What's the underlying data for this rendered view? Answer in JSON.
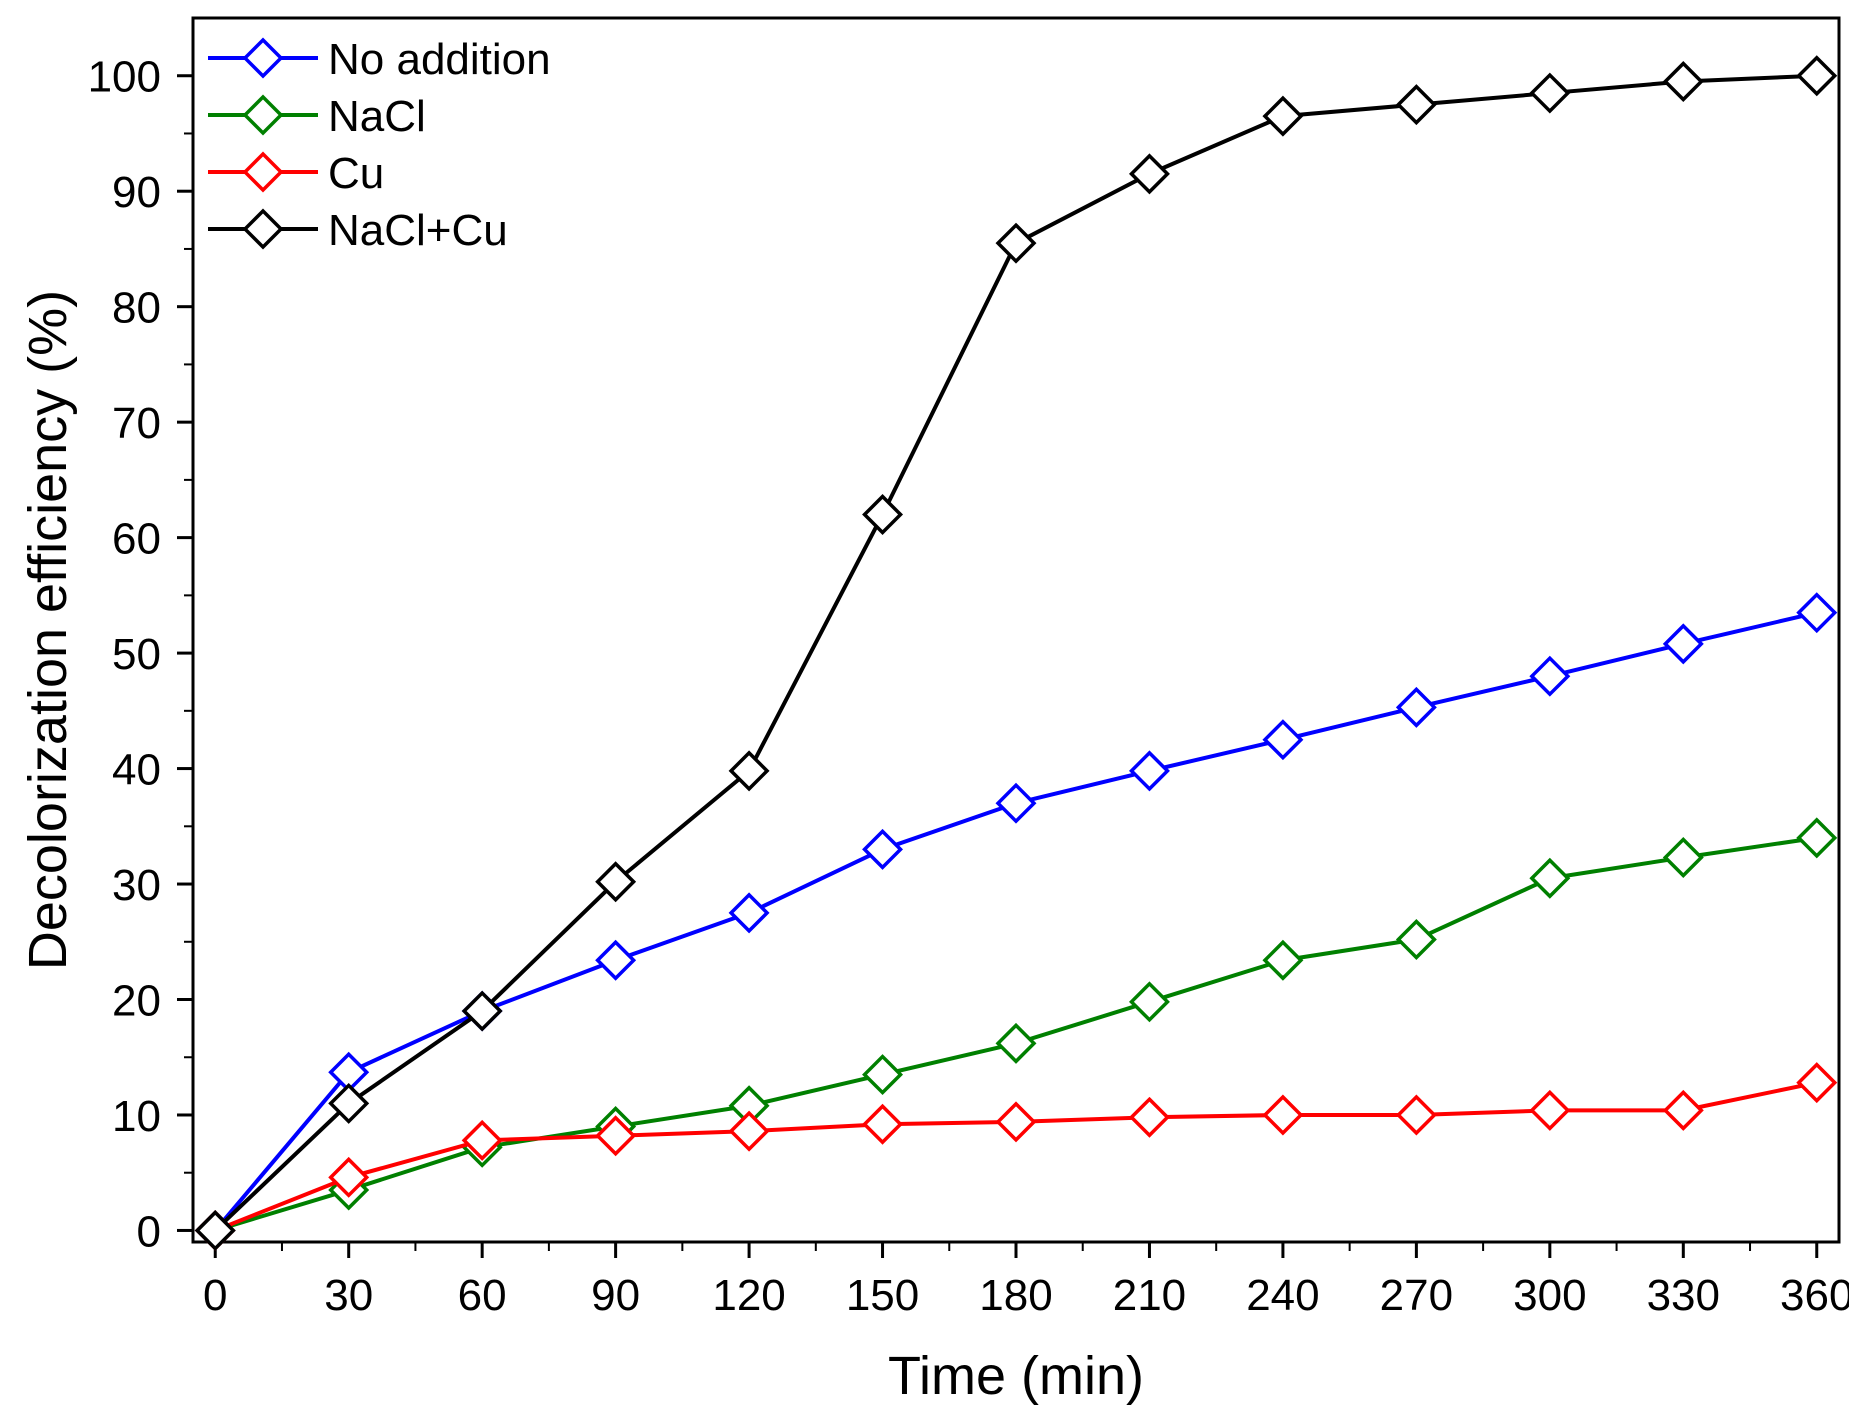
{
  "chart_data": {
    "type": "line",
    "title": "",
    "xlabel": "Time (min)",
    "ylabel": "Decolorization efficiency (%)",
    "xlim": [
      -5,
      365
    ],
    "ylim": [
      -1,
      105
    ],
    "x_ticks": [
      0,
      30,
      60,
      90,
      120,
      150,
      180,
      210,
      240,
      270,
      300,
      330,
      360
    ],
    "y_ticks": [
      0,
      10,
      20,
      30,
      40,
      50,
      60,
      70,
      80,
      90,
      100
    ],
    "x_tick_labels": [
      "0",
      "30",
      "60",
      "90",
      "120",
      "150",
      "180",
      "210",
      "240",
      "270",
      "300",
      "330",
      "360"
    ],
    "y_tick_labels": [
      "0",
      "10",
      "20",
      "30",
      "40",
      "50",
      "60",
      "70",
      "80",
      "90",
      "100"
    ],
    "grid": false,
    "legend_position": "top-left",
    "marker": "open-diamond",
    "x": [
      0,
      30,
      60,
      90,
      120,
      150,
      180,
      210,
      240,
      270,
      300,
      330,
      360
    ],
    "series": [
      {
        "name": "No addition",
        "color": "#0000ff",
        "values": [
          0,
          13.7,
          19,
          23.4,
          27.5,
          33,
          37,
          39.8,
          42.5,
          45.3,
          48,
          50.8,
          53.5
        ]
      },
      {
        "name": "NaCl",
        "color": "#008000",
        "values": [
          0,
          3.5,
          7.2,
          9,
          10.8,
          13.5,
          16.2,
          19.8,
          23.4,
          25.2,
          30.5,
          32.3,
          34
        ]
      },
      {
        "name": "Cu",
        "color": "#ff0000",
        "values": [
          0,
          4.6,
          7.8,
          8.2,
          8.6,
          9.2,
          9.4,
          9.8,
          10,
          10,
          10.4,
          10.4,
          12.8
        ]
      },
      {
        "name": "NaCl+Cu",
        "color": "#000000",
        "values": [
          0,
          11,
          19,
          30.2,
          39.8,
          62,
          85.5,
          91.5,
          96.5,
          97.5,
          98.5,
          99.5,
          100
        ]
      }
    ]
  }
}
